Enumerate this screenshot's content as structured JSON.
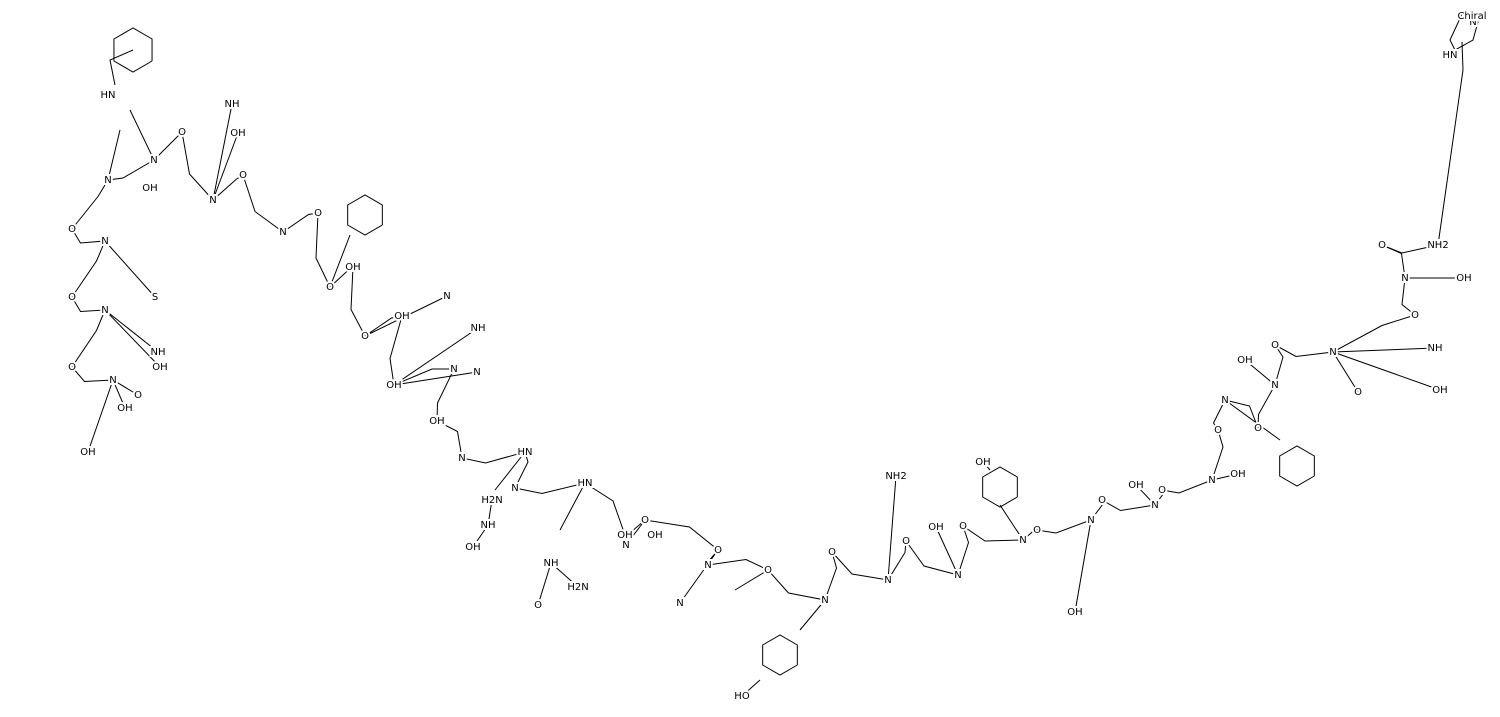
{
  "header": {
    "label": "Chiral"
  },
  "atoms": [
    "OH",
    "OH",
    "O",
    "N",
    "O",
    "NH",
    "OH",
    "N",
    "O",
    "S",
    "N",
    "O",
    "N",
    "OH",
    "HN",
    "N",
    "O",
    "NH",
    "OH",
    "N",
    "O",
    "N",
    "O",
    "O",
    "OH",
    "N",
    "O",
    "OH",
    "NH",
    "N",
    "OH",
    "N",
    "OH",
    "N",
    "HN",
    "NH",
    "H2N",
    "OH",
    "N",
    "HN",
    "NH",
    "H2N",
    "O",
    "OH",
    "N",
    "O",
    "OH",
    "N",
    "O",
    "N",
    "O",
    "HO",
    "N",
    "O",
    "NH2",
    "N",
    "O",
    "OH",
    "N",
    "O",
    "OH",
    "N",
    "O",
    "OH",
    "N",
    "O",
    "OH",
    "N",
    "O",
    "OH",
    "N",
    "O",
    "N",
    "OH",
    "O",
    "N",
    "O",
    "N",
    "O",
    "NH",
    "OH",
    "O",
    "OH",
    "N",
    "O",
    "NH2",
    "N",
    "HN"
  ]
}
